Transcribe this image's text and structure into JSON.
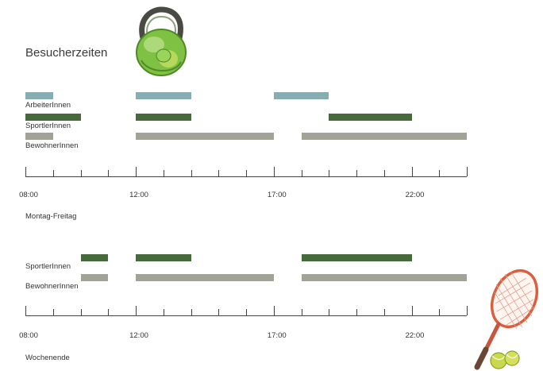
{
  "title": "Besucherzeiten",
  "colors": {
    "ArbeiterInnen": "#86aeb0",
    "SportlerInnen": "#466a3b",
    "BewohnerInnen": "#a3a296",
    "axis": "#444444"
  },
  "icons": {
    "top": "kettlebell-illustration",
    "bottom": "tennis-racket-with-balls-illustration"
  },
  "chart_data": [
    {
      "type": "bar",
      "subtype": "gantt",
      "caption": "Montag-Freitag",
      "x_unit": "hour of day",
      "xlim": [
        8,
        24
      ],
      "ticks": [
        8,
        9,
        10,
        11,
        12,
        13,
        14,
        15,
        16,
        17,
        18,
        19,
        20,
        21,
        22,
        23,
        24
      ],
      "tick_labels": [
        {
          "x": 8,
          "label": "08:00"
        },
        {
          "x": 12,
          "label": "12:00"
        },
        {
          "x": 17,
          "label": "17:00"
        },
        {
          "x": 22,
          "label": "22:00"
        }
      ],
      "series": [
        {
          "name": "ArbeiterInnen",
          "intervals": [
            [
              8,
              9
            ],
            [
              12,
              14
            ],
            [
              17,
              19
            ]
          ]
        },
        {
          "name": "SportlerInnen",
          "intervals": [
            [
              8,
              10
            ],
            [
              12,
              14
            ],
            [
              19,
              22
            ]
          ]
        },
        {
          "name": "BewohnerInnen",
          "intervals": [
            [
              8,
              9
            ],
            [
              12,
              17
            ],
            [
              18,
              24
            ]
          ]
        }
      ]
    },
    {
      "type": "bar",
      "subtype": "gantt",
      "caption": "Wochenende",
      "x_unit": "hour of day",
      "xlim": [
        8,
        24
      ],
      "ticks": [
        8,
        9,
        10,
        11,
        12,
        13,
        14,
        15,
        16,
        17,
        18,
        19,
        20,
        21,
        22,
        23,
        24
      ],
      "tick_labels": [
        {
          "x": 8,
          "label": "08:00"
        },
        {
          "x": 12,
          "label": "12:00"
        },
        {
          "x": 17,
          "label": "17:00"
        },
        {
          "x": 22,
          "label": "22:00"
        }
      ],
      "series": [
        {
          "name": "SportlerInnen",
          "intervals": [
            [
              10,
              11
            ],
            [
              12,
              14
            ],
            [
              18,
              22
            ]
          ]
        },
        {
          "name": "BewohnerInnen",
          "intervals": [
            [
              10,
              11
            ],
            [
              12,
              17
            ],
            [
              18,
              24
            ]
          ]
        }
      ]
    }
  ]
}
